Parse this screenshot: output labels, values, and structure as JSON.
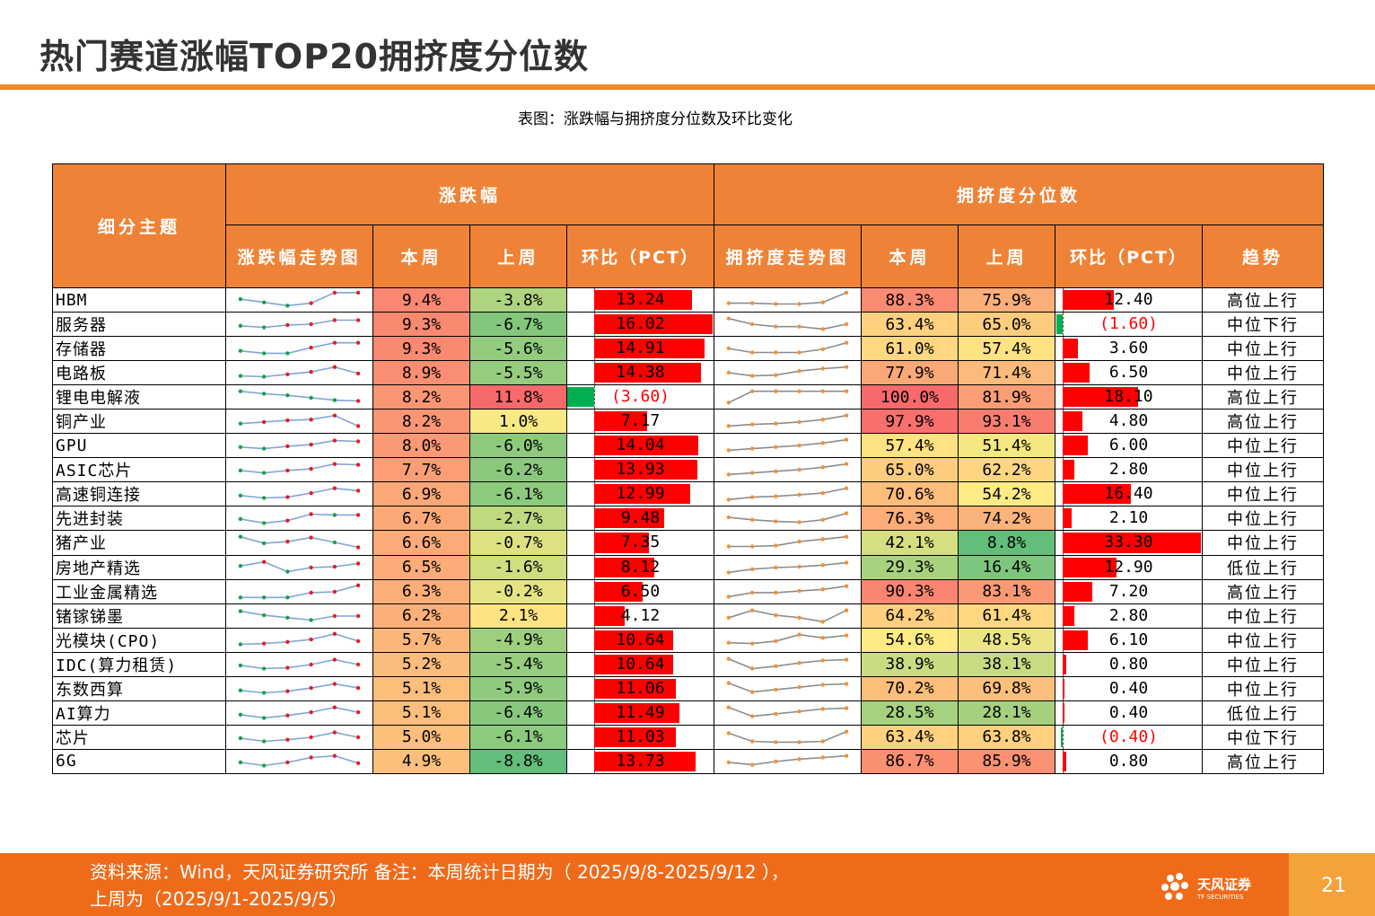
{
  "title": "热门赛道涨幅TOP20拥挤度分位数",
  "caption": "表图：涨跌幅与拥挤度分位数及环比变化",
  "headers": {
    "theme": "细分主题",
    "change_group": "涨跌幅",
    "crowd_group": "拥挤度分位数",
    "change_trend": "涨跌幅走势图",
    "this_week": "本周",
    "last_week": "上周",
    "pct": "环比（PCT）",
    "crowd_trend": "拥挤度走势图",
    "trend": "趋势"
  },
  "rows": [
    {
      "name": "HBM",
      "c_tw": "9.4%",
      "c_lw": "-3.8%",
      "c_pct": "13.24",
      "c_v": 13.24,
      "k_tw": "88.3%",
      "k_lw": "75.9%",
      "k_pct": "12.40",
      "k_v": 12.4,
      "trend": "高位上行",
      "cs": [
        0.55,
        0.35,
        0.15,
        0.3,
        0.95,
        0.95
      ],
      "ks": [
        0.3,
        0.3,
        0.25,
        0.25,
        0.35,
        0.95
      ]
    },
    {
      "name": "服务器",
      "c_tw": "9.3%",
      "c_lw": "-6.7%",
      "c_pct": "16.02",
      "c_v": 16.02,
      "k_tw": "63.4%",
      "k_lw": "65.0%",
      "k_pct": "(1.60)",
      "k_v": -1.6,
      "trend": "中位下行",
      "cs": [
        0.4,
        0.3,
        0.45,
        0.5,
        0.75,
        0.75
      ],
      "ks": [
        0.85,
        0.5,
        0.35,
        0.35,
        0.2,
        0.5
      ]
    },
    {
      "name": "存储器",
      "c_tw": "9.3%",
      "c_lw": "-5.6%",
      "c_pct": "14.91",
      "c_v": 14.91,
      "k_tw": "61.0%",
      "k_lw": "57.4%",
      "k_pct": "3.60",
      "k_v": 3.6,
      "trend": "中位上行",
      "cs": [
        0.35,
        0.2,
        0.2,
        0.55,
        0.85,
        0.85
      ],
      "ks": [
        0.5,
        0.25,
        0.25,
        0.25,
        0.45,
        0.85
      ]
    },
    {
      "name": "电路板",
      "c_tw": "8.9%",
      "c_lw": "-5.5%",
      "c_pct": "14.38",
      "c_v": 14.38,
      "k_tw": "77.9%",
      "k_lw": "71.4%",
      "k_pct": "6.50",
      "k_v": 6.5,
      "trend": "中位上行",
      "cs": [
        0.3,
        0.25,
        0.4,
        0.55,
        0.85,
        0.45
      ],
      "ks": [
        0.5,
        0.3,
        0.35,
        0.6,
        0.75,
        0.85
      ]
    },
    {
      "name": "锂电电解液",
      "c_tw": "8.2%",
      "c_lw": "11.8%",
      "c_pct": "(3.60)",
      "c_v": -3.6,
      "k_tw": "100.0%",
      "k_lw": "81.9%",
      "k_pct": "18.10",
      "k_v": 18.1,
      "trend": "高位上行",
      "cs": [
        0.85,
        0.7,
        0.6,
        0.45,
        0.3,
        0.25
      ],
      "ks": [
        0.15,
        0.85,
        0.85,
        0.85,
        0.85,
        0.85
      ]
    },
    {
      "name": "铜产业",
      "c_tw": "8.2%",
      "c_lw": "1.0%",
      "c_pct": "7.17",
      "c_v": 7.17,
      "k_tw": "97.9%",
      "k_lw": "93.1%",
      "k_pct": "4.80",
      "k_v": 4.8,
      "trend": "高位上行",
      "cs": [
        0.35,
        0.45,
        0.55,
        0.6,
        0.85,
        0.2
      ],
      "ks": [
        0.2,
        0.3,
        0.35,
        0.45,
        0.6,
        0.85
      ]
    },
    {
      "name": "GPU",
      "c_tw": "8.0%",
      "c_lw": "-6.0%",
      "c_pct": "14.04",
      "c_v": 14.04,
      "k_tw": "57.4%",
      "k_lw": "51.4%",
      "k_pct": "6.00",
      "k_v": 6.0,
      "trend": "中位上行",
      "cs": [
        0.4,
        0.3,
        0.45,
        0.55,
        0.8,
        0.75
      ],
      "ks": [
        0.2,
        0.3,
        0.4,
        0.5,
        0.65,
        0.85
      ]
    },
    {
      "name": "ASIC芯片",
      "c_tw": "7.7%",
      "c_lw": "-6.2%",
      "c_pct": "13.93",
      "c_v": 13.93,
      "k_tw": "65.0%",
      "k_lw": "62.2%",
      "k_pct": "2.80",
      "k_v": 2.8,
      "trend": "中位上行",
      "cs": [
        0.45,
        0.3,
        0.45,
        0.55,
        0.85,
        0.8
      ],
      "ks": [
        0.2,
        0.3,
        0.4,
        0.5,
        0.65,
        0.85
      ]
    },
    {
      "name": "高速铜连接",
      "c_tw": "6.9%",
      "c_lw": "-6.1%",
      "c_pct": "12.99",
      "c_v": 12.99,
      "k_tw": "70.6%",
      "k_lw": "54.2%",
      "k_pct": "16.40",
      "k_v": 16.4,
      "trend": "中位上行",
      "cs": [
        0.4,
        0.25,
        0.3,
        0.55,
        0.85,
        0.7
      ],
      "ks": [
        0.15,
        0.3,
        0.35,
        0.45,
        0.55,
        0.85
      ]
    },
    {
      "name": "先进封装",
      "c_tw": "6.7%",
      "c_lw": "-2.7%",
      "c_pct": "9.48",
      "c_v": 9.48,
      "k_tw": "76.3%",
      "k_lw": "74.2%",
      "k_pct": "2.10",
      "k_v": 2.1,
      "trend": "中位上行",
      "cs": [
        0.45,
        0.2,
        0.35,
        0.75,
        0.7,
        0.7
      ],
      "ks": [
        0.55,
        0.4,
        0.3,
        0.25,
        0.4,
        0.8
      ]
    },
    {
      "name": "猪产业",
      "c_tw": "6.6%",
      "c_lw": "-0.7%",
      "c_pct": "7.35",
      "c_v": 7.35,
      "k_tw": "42.1%",
      "k_lw": "8.8%",
      "k_pct": "33.30",
      "k_v": 33.3,
      "trend": "中位上行",
      "cs": [
        0.85,
        0.45,
        0.55,
        0.8,
        0.5,
        0.2
      ],
      "ks": [
        0.25,
        0.25,
        0.3,
        0.55,
        0.7,
        0.85
      ]
    },
    {
      "name": "房地产精选",
      "c_tw": "6.5%",
      "c_lw": "-1.6%",
      "c_pct": "8.12",
      "c_v": 8.12,
      "k_tw": "29.3%",
      "k_lw": "16.4%",
      "k_pct": "12.90",
      "k_v": 12.9,
      "trend": "低位上行",
      "cs": [
        0.6,
        0.85,
        0.25,
        0.5,
        0.55,
        0.75
      ],
      "ks": [
        0.2,
        0.4,
        0.5,
        0.55,
        0.65,
        0.8
      ]
    },
    {
      "name": "工业金属精选",
      "c_tw": "6.3%",
      "c_lw": "-0.2%",
      "c_pct": "6.50",
      "c_v": 6.5,
      "k_tw": "90.3%",
      "k_lw": "83.1%",
      "k_pct": "7.20",
      "k_v": 7.2,
      "trend": "高位上行",
      "cs": [
        0.15,
        0.15,
        0.15,
        0.45,
        0.5,
        0.9
      ],
      "ks": [
        0.2,
        0.45,
        0.45,
        0.55,
        0.65,
        0.85
      ]
    },
    {
      "name": "锗镓锑墨",
      "c_tw": "6.2%",
      "c_lw": "2.1%",
      "c_pct": "4.12",
      "c_v": 4.12,
      "k_tw": "64.2%",
      "k_lw": "61.4%",
      "k_pct": "2.80",
      "k_v": 2.8,
      "trend": "中位上行",
      "cs": [
        0.8,
        0.55,
        0.4,
        0.25,
        0.5,
        0.5
      ],
      "ks": [
        0.4,
        0.85,
        0.55,
        0.4,
        0.15,
        0.85
      ]
    },
    {
      "name": "光模块(CPO)",
      "c_tw": "5.7%",
      "c_lw": "-4.9%",
      "c_pct": "10.64",
      "c_v": 10.64,
      "k_tw": "54.6%",
      "k_lw": "48.5%",
      "k_pct": "6.10",
      "k_v": 6.1,
      "trend": "中位上行",
      "cs": [
        0.25,
        0.3,
        0.4,
        0.55,
        0.9,
        0.45
      ],
      "ks": [
        0.35,
        0.3,
        0.45,
        0.85,
        0.65,
        0.8
      ]
    },
    {
      "name": "IDC(算力租赁)",
      "c_tw": "5.2%",
      "c_lw": "-5.4%",
      "c_pct": "10.64",
      "c_v": 10.64,
      "k_tw": "38.9%",
      "k_lw": "38.1%",
      "k_pct": "0.80",
      "k_v": 0.8,
      "trend": "中位上行",
      "cs": [
        0.45,
        0.25,
        0.3,
        0.5,
        0.8,
        0.5
      ],
      "ks": [
        0.85,
        0.25,
        0.4,
        0.6,
        0.75,
        0.8
      ]
    },
    {
      "name": "东数西算",
      "c_tw": "5.1%",
      "c_lw": "-5.9%",
      "c_pct": "11.06",
      "c_v": 11.06,
      "k_tw": "70.2%",
      "k_lw": "69.8%",
      "k_pct": "0.40",
      "k_v": 0.4,
      "trend": "中位上行",
      "cs": [
        0.4,
        0.25,
        0.35,
        0.55,
        0.8,
        0.55
      ],
      "ks": [
        0.85,
        0.3,
        0.45,
        0.6,
        0.75,
        0.8
      ]
    },
    {
      "name": "AI算力",
      "c_tw": "5.1%",
      "c_lw": "-6.4%",
      "c_pct": "11.49",
      "c_v": 11.49,
      "k_tw": "28.5%",
      "k_lw": "28.1%",
      "k_pct": "0.40",
      "k_v": 0.4,
      "trend": "低位上行",
      "cs": [
        0.4,
        0.2,
        0.35,
        0.55,
        0.85,
        0.55
      ],
      "ks": [
        0.85,
        0.3,
        0.45,
        0.6,
        0.75,
        0.8
      ]
    },
    {
      "name": "芯片",
      "c_tw": "5.0%",
      "c_lw": "-6.1%",
      "c_pct": "11.03",
      "c_v": 11.03,
      "k_tw": "63.4%",
      "k_lw": "63.8%",
      "k_pct": "(0.40)",
      "k_v": -0.4,
      "trend": "中位下行",
      "cs": [
        0.45,
        0.25,
        0.35,
        0.5,
        0.8,
        0.5
      ],
      "ks": [
        0.75,
        0.25,
        0.2,
        0.2,
        0.25,
        0.85
      ]
    },
    {
      "name": "6G",
      "c_tw": "4.9%",
      "c_lw": "-8.8%",
      "c_pct": "13.73",
      "c_v": 13.73,
      "k_tw": "86.7%",
      "k_lw": "85.9%",
      "k_pct": "0.80",
      "k_v": 0.8,
      "trend": "高位上行",
      "cs": [
        0.45,
        0.25,
        0.45,
        0.75,
        0.85,
        0.4
      ],
      "ks": [
        0.45,
        0.3,
        0.5,
        0.65,
        0.75,
        0.85
      ]
    }
  ],
  "footer": {
    "source": "资料来源：Wind，天风证券研究所 备注：本周统计日期为（  2025/9/8-2025/9/12  ），上周为（2025/9/1-2025/9/5）",
    "logo": "天风证券",
    "logo_sub": "TF SECURITIES",
    "page": "21"
  }
}
